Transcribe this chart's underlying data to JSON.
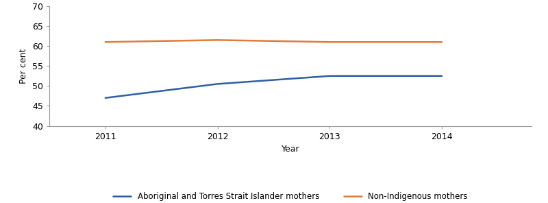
{
  "years": [
    2011,
    2012,
    2013,
    2014
  ],
  "indigenous_values": [
    47.0,
    50.5,
    52.5,
    52.5
  ],
  "non_indigenous_values": [
    61.0,
    61.5,
    61.0,
    61.0
  ],
  "indigenous_color": "#2e5fa3",
  "non_indigenous_color": "#e07b39",
  "xlabel": "Year",
  "ylabel": "Per cent",
  "ylim": [
    40,
    70
  ],
  "yticks": [
    40,
    45,
    50,
    55,
    60,
    65,
    70
  ],
  "xlim_left": 2010.5,
  "xlim_right": 2014.8,
  "indigenous_label": "Aboriginal and Torres Strait Islander mothers",
  "non_indigenous_label": "Non-Indigenous mothers",
  "line_width": 1.8,
  "background_color": "#ffffff",
  "spine_color": "#999999",
  "legend_fontsize": 8.5,
  "axis_label_fontsize": 9,
  "tick_fontsize": 9
}
